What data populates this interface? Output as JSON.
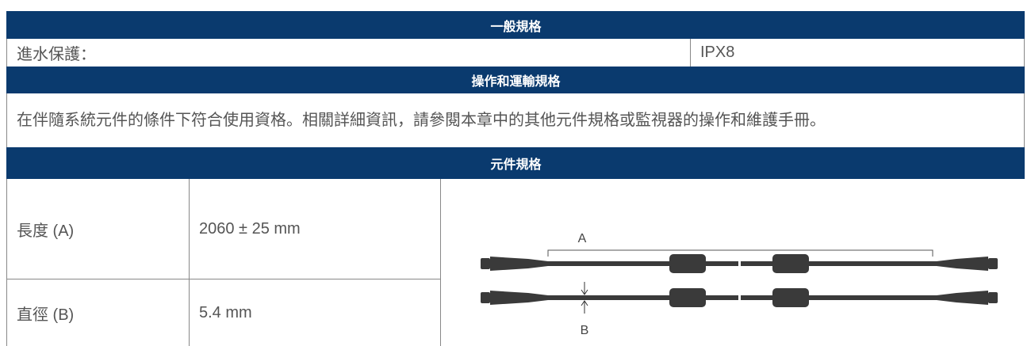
{
  "general": {
    "title": "一般規格",
    "label": "進水保護：",
    "value": "IPX8"
  },
  "operation": {
    "title": "操作和運輸規格",
    "text": "在伴隨系統元件的條件下符合使用資格。相關詳細資訊，請參閱本章中的其他元件規格或監視器的操作和維護手冊。"
  },
  "components": {
    "title": "元件規格",
    "rows": [
      {
        "label": "長度 (A)",
        "value": "2060 ± 25 mm"
      },
      {
        "label": "直徑 (B)",
        "value": "5.4 mm"
      }
    ],
    "figure": {
      "label_a": "A",
      "label_b": "B"
    }
  }
}
